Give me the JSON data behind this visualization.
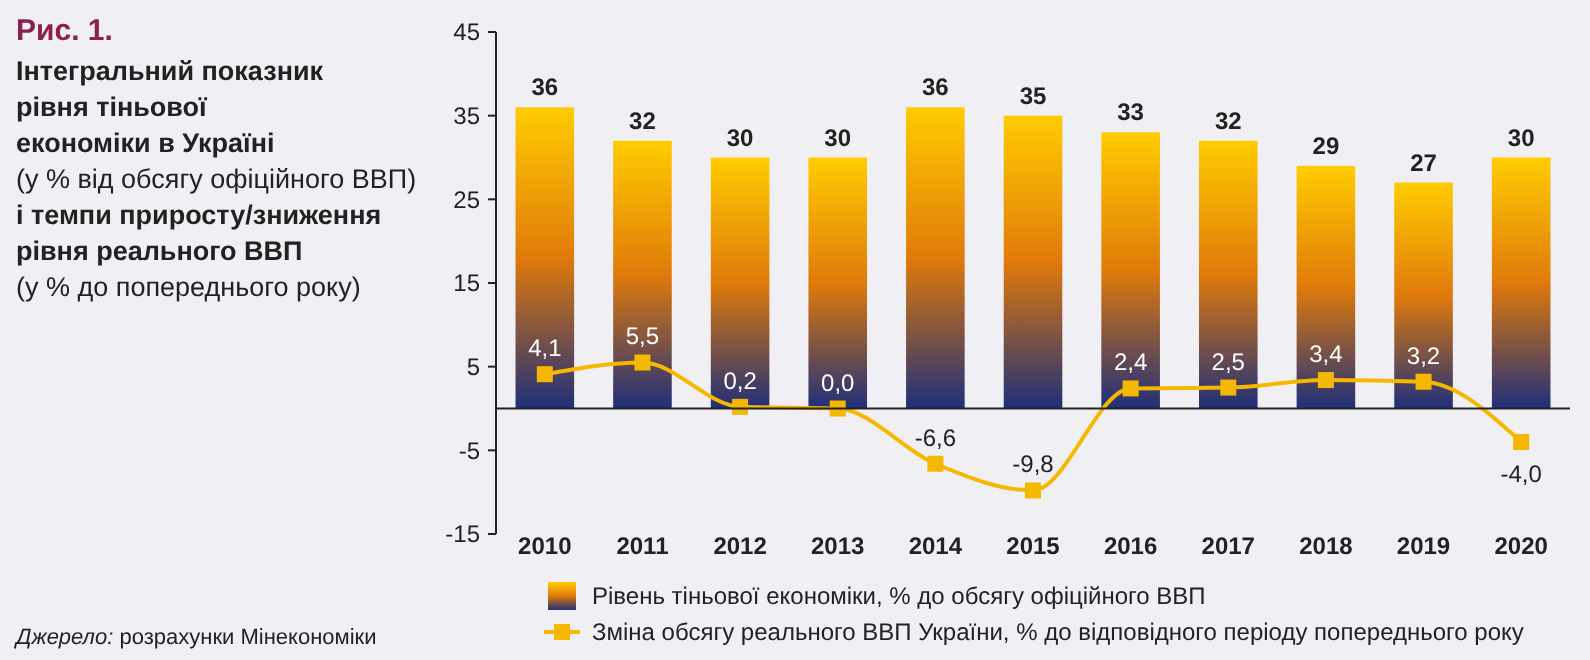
{
  "chart_data": {
    "type": "bar",
    "title": "Рис. 1.",
    "subtitle": "Інтегральний показник\nрівня тіньової\nекономіки в Україні\n(у % від обсягу офіційного ВВП)\nі темпи приросту/зниження\nрівня реального ВВП\n(у % до попереднього року)",
    "annotations": [
      "Джерело: розрахунки Мінекономіки"
    ],
    "categories": [
      "2010",
      "2011",
      "2012",
      "2013",
      "2014",
      "2015",
      "2016",
      "2017",
      "2018",
      "2019",
      "2020"
    ],
    "series": [
      {
        "name": "Рівень тіньової економіки, % до обсягу офіційного ВВП",
        "color": "#e07a0a",
        "values": [
          36,
          32,
          30,
          30,
          36,
          35,
          33,
          32,
          29,
          27,
          30
        ],
        "value_labels": [
          "36",
          "32",
          "30",
          "30",
          "36",
          "35",
          "33",
          "32",
          "29",
          "27",
          "30"
        ]
      },
      {
        "name": "Зміна обсягу реального ВВП України, % до відповідного періоду попереднього року",
        "type": "line",
        "color": "#f5b800",
        "marker": "square",
        "values": [
          4.1,
          5.5,
          0.2,
          0.0,
          -6.6,
          -9.8,
          2.4,
          2.5,
          3.4,
          3.2,
          -4.0
        ],
        "value_labels": [
          "4,1",
          "5,5",
          "0,2",
          "0,0",
          "-6,6",
          "-9,8",
          "2,4",
          "2,5",
          "3,4",
          "3,2",
          "-4,0"
        ]
      }
    ],
    "ylim": [
      -15,
      45
    ],
    "yticks": [
      -15,
      -5,
      5,
      15,
      25,
      35,
      45
    ],
    "grid": false,
    "legend": "bottom"
  }
}
